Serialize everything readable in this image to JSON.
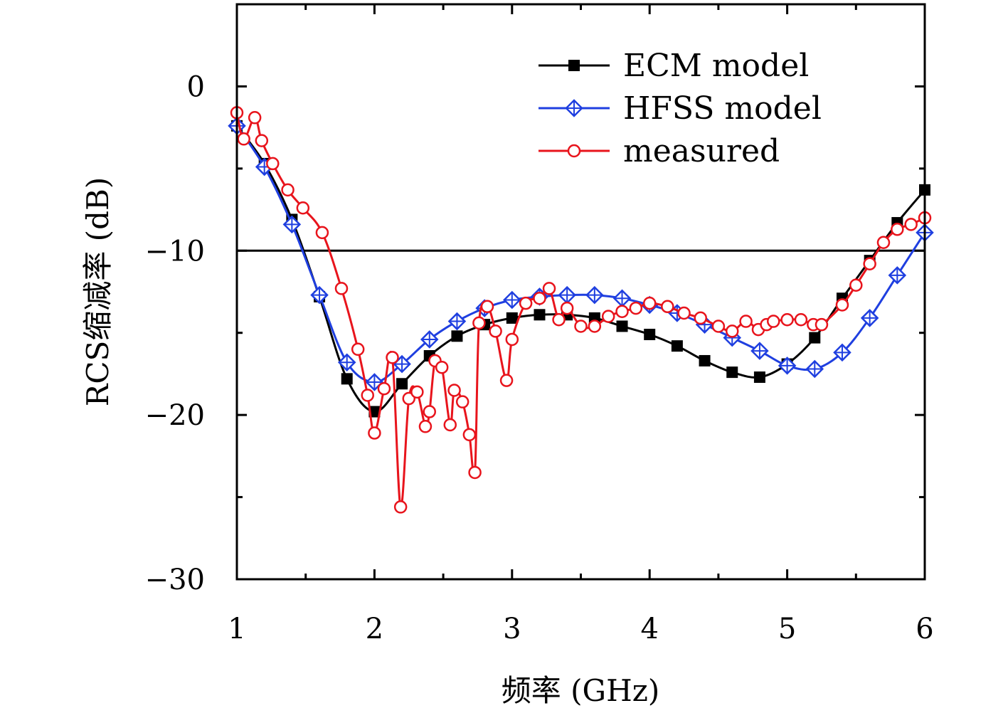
{
  "chart_data": {
    "type": "line",
    "xlabel": "频率 (GHz)",
    "ylabel": "RCS缩减率 (dB)",
    "xlim": [
      1,
      6
    ],
    "ylim": [
      -30,
      5
    ],
    "x_ticks": [
      "1",
      "2",
      "3",
      "4",
      "5",
      "6"
    ],
    "x_tick_values": [
      1,
      2,
      3,
      4,
      5,
      6
    ],
    "y_ticks": [
      "0",
      "−10",
      "−20",
      "−30"
    ],
    "y_tick_values": [
      0,
      -10,
      -20,
      -30
    ],
    "x_minor_tick_values": [
      1.5,
      2.5,
      3.5,
      4.5,
      5.5
    ],
    "y_minor_tick_values": [
      -5,
      -15,
      -25
    ],
    "reference_line_y": -10,
    "grid": false,
    "legend_position": "top-right",
    "series": [
      {
        "name": "ECM model",
        "color": "#000000",
        "marker": "filled-square",
        "x": [
          1.0,
          1.2,
          1.4,
          1.6,
          1.8,
          2.0,
          2.2,
          2.4,
          2.6,
          2.8,
          3.0,
          3.2,
          3.4,
          3.6,
          3.8,
          4.0,
          4.2,
          4.4,
          4.6,
          4.8,
          5.0,
          5.2,
          5.4,
          5.6,
          5.8,
          6.0
        ],
        "y": [
          -2.4,
          -4.7,
          -8.1,
          -12.8,
          -17.8,
          -19.8,
          -18.1,
          -16.4,
          -15.2,
          -14.5,
          -14.1,
          -13.9,
          -13.9,
          -14.1,
          -14.6,
          -15.1,
          -15.8,
          -16.7,
          -17.4,
          -17.7,
          -16.9,
          -15.3,
          -12.9,
          -10.6,
          -8.3,
          -6.3
        ]
      },
      {
        "name": "HFSS model",
        "color": "#1f3fe0",
        "marker": "open-diamond",
        "x": [
          1.0,
          1.2,
          1.4,
          1.6,
          1.8,
          2.0,
          2.2,
          2.4,
          2.6,
          2.8,
          3.0,
          3.2,
          3.4,
          3.6,
          3.8,
          4.0,
          4.2,
          4.4,
          4.6,
          4.8,
          5.0,
          5.2,
          5.4,
          5.6,
          5.8,
          6.0
        ],
        "y": [
          -2.4,
          -4.9,
          -8.4,
          -12.7,
          -16.8,
          -18.0,
          -16.9,
          -15.4,
          -14.3,
          -13.5,
          -13.0,
          -12.8,
          -12.7,
          -12.7,
          -12.9,
          -13.3,
          -13.8,
          -14.5,
          -15.3,
          -16.1,
          -17.0,
          -17.2,
          -16.2,
          -14.1,
          -11.5,
          -8.9
        ]
      },
      {
        "name": "measured",
        "color": "#e8141c",
        "marker": "open-circle",
        "x": [
          1.0,
          1.05,
          1.13,
          1.18,
          1.26,
          1.37,
          1.48,
          1.62,
          1.76,
          1.88,
          1.95,
          2.0,
          2.07,
          2.13,
          2.19,
          2.25,
          2.31,
          2.37,
          2.4,
          2.44,
          2.49,
          2.55,
          2.58,
          2.64,
          2.69,
          2.73,
          2.76,
          2.82,
          2.88,
          2.96,
          3.0,
          3.1,
          3.2,
          3.27,
          3.34,
          3.4,
          3.5,
          3.6,
          3.7,
          3.8,
          3.9,
          4.0,
          4.13,
          4.25,
          4.37,
          4.5,
          4.6,
          4.7,
          4.79,
          4.85,
          4.9,
          5.0,
          5.1,
          5.19,
          5.25,
          5.4,
          5.5,
          5.6,
          5.7,
          5.8,
          5.9,
          6.0
        ],
        "y": [
          -1.6,
          -3.2,
          -1.9,
          -3.3,
          -4.7,
          -6.3,
          -7.4,
          -8.9,
          -12.3,
          -16.0,
          -18.8,
          -21.1,
          -18.4,
          -16.5,
          -25.6,
          -19.0,
          -18.6,
          -20.7,
          -19.8,
          -16.7,
          -17.1,
          -20.6,
          -18.5,
          -19.2,
          -21.2,
          -23.5,
          -14.4,
          -13.4,
          -14.9,
          -17.9,
          -15.4,
          -13.2,
          -12.9,
          -12.3,
          -14.2,
          -13.5,
          -14.6,
          -14.6,
          -14.0,
          -13.7,
          -13.5,
          -13.2,
          -13.4,
          -13.8,
          -14.1,
          -14.6,
          -14.9,
          -14.3,
          -14.8,
          -14.5,
          -14.3,
          -14.2,
          -14.2,
          -14.5,
          -14.5,
          -13.3,
          -12.1,
          -10.8,
          -9.5,
          -8.7,
          -8.4,
          -8.0
        ]
      }
    ]
  }
}
